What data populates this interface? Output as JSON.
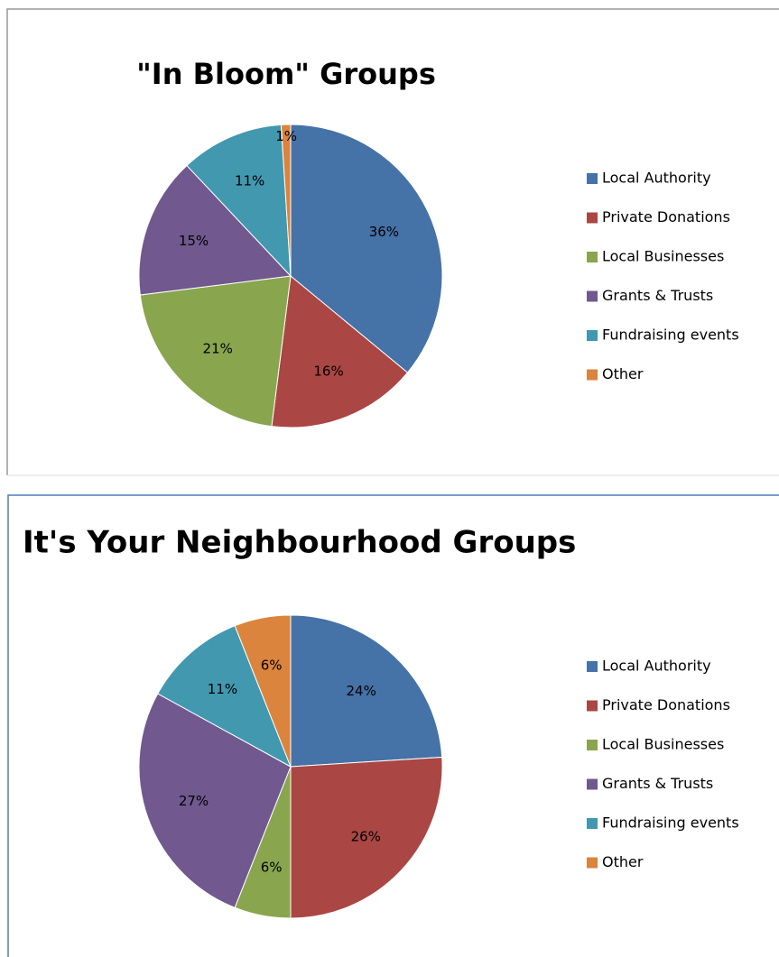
{
  "chart_data": [
    {
      "type": "pie",
      "title": "\"In Bloom\" Groups",
      "categories": [
        "Local Authority",
        "Private Donations",
        "Local Businesses",
        "Grants & Trusts",
        "Fundraising events",
        "Other"
      ],
      "values": [
        36,
        16,
        21,
        15,
        11,
        1
      ],
      "value_labels": [
        "36%",
        "16%",
        "21%",
        "15%",
        "11%",
        "1%"
      ],
      "colors": [
        "#4572a7",
        "#aa4643",
        "#89a54e",
        "#71588f",
        "#4198af",
        "#db843d"
      ],
      "legend": "right"
    },
    {
      "type": "pie",
      "title": "It's Your Neighbourhood Groups",
      "categories": [
        "Local Authority",
        "Private Donations",
        "Local Businesses",
        "Grants & Trusts",
        "Fundraising events",
        "Other"
      ],
      "values": [
        24,
        26,
        6,
        27,
        11,
        6
      ],
      "value_labels": [
        "24%",
        "26%",
        "6%",
        "27%",
        "11%",
        "6%"
      ],
      "colors": [
        "#4572a7",
        "#aa4643",
        "#89a54e",
        "#71588f",
        "#4198af",
        "#db843d"
      ],
      "legend": "right"
    }
  ]
}
